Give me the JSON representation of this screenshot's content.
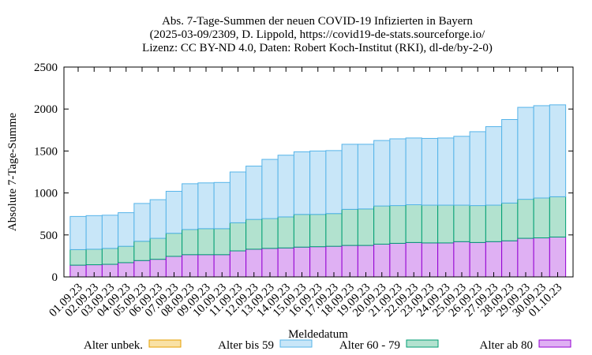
{
  "chart_data": {
    "type": "bar",
    "stacked": true,
    "title_lines": [
      "Abs. 7-Tage-Summen der neuen COVID-19 Infizierten in Bayern",
      "(2025-03-09/2309, D. Lippold, https://covid19-de-stats.sourceforge.io/",
      "Lizenz: CC BY-ND 4.0, Daten: Robert Koch-Institut (RKI), dl-de/by-2-0)"
    ],
    "xlabel": "Meldedatum",
    "ylabel": "Absolute 7-Tage-Summe",
    "ylim": [
      0,
      2500
    ],
    "yticks": [
      0,
      500,
      1000,
      1500,
      2000,
      2500
    ],
    "grid": false,
    "legend_position": "bottom",
    "categories": [
      "01.09.23",
      "02.09.23",
      "03.09.23",
      "04.09.23",
      "05.09.23",
      "06.09.23",
      "07.09.23",
      "08.09.23",
      "09.09.23",
      "10.09.23",
      "11.09.23",
      "12.09.23",
      "13.09.23",
      "14.09.23",
      "15.09.23",
      "16.09.23",
      "17.09.23",
      "18.09.23",
      "19.09.23",
      "20.09.23",
      "21.09.23",
      "22.09.23",
      "23.09.23",
      "24.09.23",
      "25.09.23",
      "26.09.23",
      "27.09.23",
      "28.09.23",
      "29.09.23",
      "30.09.23",
      "01.10.23"
    ],
    "series": [
      {
        "name": "Alter ab 80",
        "fill": "#dfb0f3",
        "stroke": "#9400d3",
        "values": [
          140,
          145,
          150,
          170,
          195,
          210,
          245,
          265,
          265,
          265,
          310,
          330,
          340,
          345,
          355,
          360,
          365,
          375,
          375,
          390,
          400,
          410,
          405,
          405,
          420,
          410,
          420,
          430,
          460,
          465,
          475
        ]
      },
      {
        "name": "Alter 60 - 79",
        "fill": "#b2e2cf",
        "stroke": "#009e73",
        "values": [
          185,
          185,
          190,
          195,
          230,
          250,
          275,
          300,
          310,
          310,
          335,
          355,
          355,
          370,
          390,
          385,
          390,
          430,
          435,
          455,
          450,
          450,
          450,
          450,
          435,
          440,
          435,
          450,
          465,
          475,
          480
        ]
      },
      {
        "name": "Alter bis 59",
        "fill": "#c8e6f8",
        "stroke": "#56b4e9",
        "values": [
          395,
          400,
          395,
          400,
          450,
          460,
          500,
          545,
          545,
          550,
          605,
          635,
          705,
          735,
          745,
          755,
          750,
          775,
          770,
          780,
          795,
          795,
          795,
          800,
          820,
          880,
          935,
          995,
          1095,
          1100,
          1095
        ]
      },
      {
        "name": "Alter unbek.",
        "fill": "#f9e1a5",
        "stroke": "#e69f00",
        "values": [
          0,
          0,
          0,
          0,
          0,
          0,
          0,
          0,
          0,
          0,
          0,
          0,
          0,
          0,
          0,
          0,
          0,
          0,
          0,
          0,
          0,
          0,
          0,
          0,
          0,
          0,
          0,
          0,
          0,
          0,
          0
        ]
      }
    ]
  }
}
